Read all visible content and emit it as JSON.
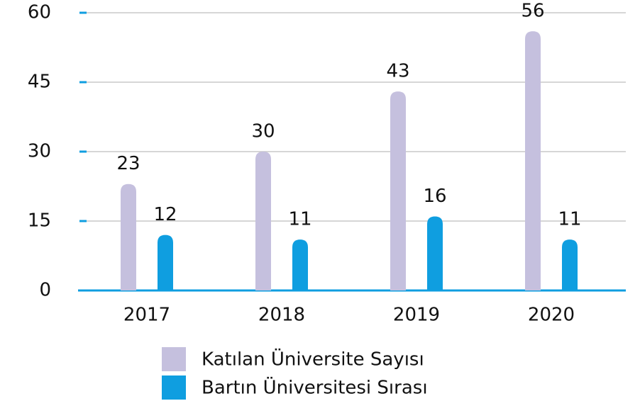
{
  "chart_data": {
    "type": "bar",
    "categories": [
      "2017",
      "2018",
      "2019",
      "2020"
    ],
    "series": [
      {
        "name": "Katılan Üniversite Sayısı",
        "color": "#c5c0de",
        "values": [
          23,
          30,
          43,
          56
        ]
      },
      {
        "name": "Bartın Üniversitesi Sırası",
        "color": "#0f9ee0",
        "values": [
          12,
          11,
          16,
          11
        ]
      }
    ],
    "ylim": [
      0,
      60
    ],
    "yticks": [
      0,
      15,
      30,
      45,
      60
    ],
    "grid": true,
    "legend": "bottom"
  }
}
